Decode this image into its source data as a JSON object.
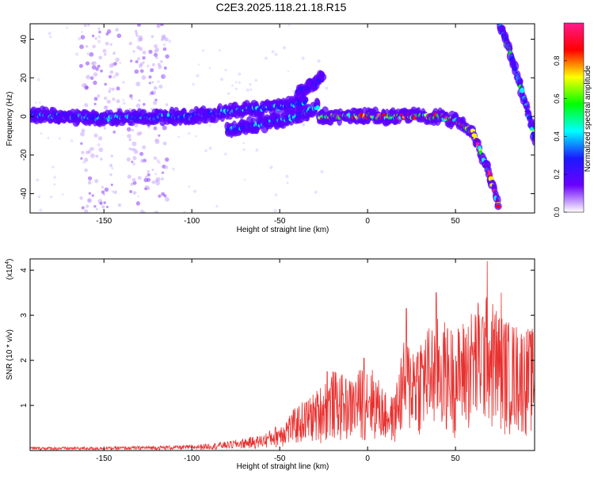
{
  "title": "C2E3.2025.118.21.18.R15",
  "colorbar": {
    "label": "Normalized spectral amplitude",
    "ticks": [
      0.0,
      0.2,
      0.4,
      0.6,
      0.8
    ],
    "tick_labels": [
      "0.0",
      "0.2",
      "0.4",
      "0.6",
      "0.8"
    ],
    "stops": [
      "#ffffff",
      "#6a00ff",
      "#1a1aff",
      "#00ffff",
      "#00ff00",
      "#ffff00",
      "#ff0000",
      "#ff1a8c"
    ]
  },
  "chart_data": [
    {
      "type": "heatmap",
      "xlabel": "Height of straight line (km)",
      "ylabel": "Frequency (Hz)",
      "xlim": [
        -192,
        95
      ],
      "ylim": [
        -50,
        48
      ],
      "xticks": [
        -150,
        -100,
        -50,
        0,
        50
      ],
      "yticks": [
        -40,
        -20,
        0,
        20,
        40
      ],
      "grid": false,
      "tracks": [
        {
          "x": [
            -192,
            -150,
            -100,
            -75,
            -50,
            -35
          ],
          "y": [
            1,
            -1,
            0,
            3,
            5,
            7
          ],
          "amplitude": 0.35
        },
        {
          "x": [
            -80,
            -60,
            -40,
            -28
          ],
          "y": [
            -7,
            -4,
            0,
            5
          ],
          "amplitude": 0.35
        },
        {
          "x": [
            -40,
            -32,
            -25
          ],
          "y": [
            12,
            16,
            20
          ],
          "amplitude": 0.25
        },
        {
          "x": [
            -28,
            -20,
            0,
            20,
            40,
            50,
            60,
            65,
            70,
            75
          ],
          "y": [
            0,
            0,
            0,
            0,
            0,
            -2,
            -8,
            -20,
            -32,
            -48
          ],
          "amplitude": 0.75
        },
        {
          "x": [
            75,
            80,
            85,
            90,
            95
          ],
          "y": [
            48,
            36,
            22,
            6,
            -12
          ],
          "amplitude": 0.45
        }
      ]
    },
    {
      "type": "line",
      "xlabel": "Height of straight line (km)",
      "ylabel": "SNR (10 * v/v)",
      "y_multiplier": "(x10",
      "y_multiplier_exp": "4",
      "y_multiplier_close": ")",
      "xlim": [
        -192,
        95
      ],
      "ylim": [
        0,
        4.25
      ],
      "xticks": [
        -150,
        -100,
        -50,
        0,
        50
      ],
      "yticks": [
        1,
        2,
        3,
        4
      ],
      "color": "#e8312f",
      "envelope": {
        "x": [
          -192,
          -150,
          -100,
          -80,
          -60,
          -50,
          -40,
          -30,
          -20,
          -10,
          0,
          5,
          10,
          15,
          20,
          30,
          40,
          50,
          60,
          65,
          70,
          80,
          95
        ],
        "y": [
          0.08,
          0.08,
          0.12,
          0.2,
          0.35,
          0.6,
          1.0,
          1.3,
          1.8,
          1.6,
          2.0,
          1.7,
          1.3,
          1.2,
          2.4,
          2.6,
          3.0,
          2.7,
          3.2,
          3.5,
          3.4,
          2.9,
          2.7
        ]
      },
      "peaks": {
        "x": [
          -23,
          -2,
          22,
          39,
          68,
          76
        ],
        "y": [
          1.75,
          2.05,
          3.15,
          3.5,
          4.2,
          3.5
        ]
      }
    }
  ]
}
